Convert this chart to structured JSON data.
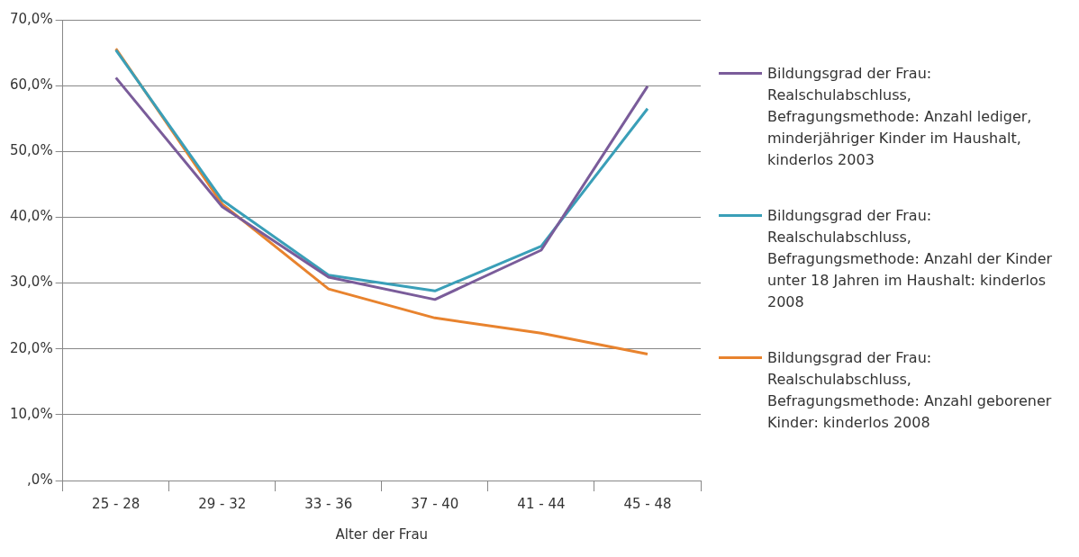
{
  "chart_data": {
    "type": "line",
    "xlabel": "Alter der Frau",
    "categories": [
      "25 - 28",
      "29 - 32",
      "33 - 36",
      "37 - 40",
      "41 - 44",
      "45 - 48"
    ],
    "series": [
      {
        "name": "Bildungsgrad der Frau: Realschulabschluss, Befragungsmethode: Anzahl lediger, minderjähriger Kinder im Haushalt, kinderlos 2003",
        "color": "#7a5c9a",
        "values": [
          61.2,
          41.6,
          30.9,
          27.5,
          35.0,
          59.9
        ]
      },
      {
        "name": "Bildungsgrad der Frau: Realschulabschluss, Befragungsmethode: Anzahl der Kinder unter 18 Jahren im Haushalt:  kinderlos 2008",
        "color": "#3a9fb8",
        "values": [
          65.4,
          42.6,
          31.2,
          28.8,
          35.6,
          56.5
        ]
      },
      {
        "name": "Bildungsgrad der Frau: Realschulabschluss, Befragungsmethode: Anzahl geborener Kinder: kinderlos 2008",
        "color": "#e8832e",
        "values": [
          65.6,
          42.0,
          29.1,
          24.7,
          22.4,
          19.2
        ]
      }
    ],
    "ylim": [
      0,
      70
    ],
    "yticks": [
      {
        "value": 0,
        "label": ",0%"
      },
      {
        "value": 10,
        "label": "10,0%"
      },
      {
        "value": 20,
        "label": "20,0%"
      },
      {
        "value": 30,
        "label": "30,0%"
      },
      {
        "value": 40,
        "label": "40,0%"
      },
      {
        "value": 50,
        "label": "50,0%"
      },
      {
        "value": 60,
        "label": "60,0%"
      },
      {
        "value": 70,
        "label": "70,0%"
      }
    ],
    "grid": "y",
    "legend": "right",
    "marker": "none",
    "line_style": "solid"
  }
}
